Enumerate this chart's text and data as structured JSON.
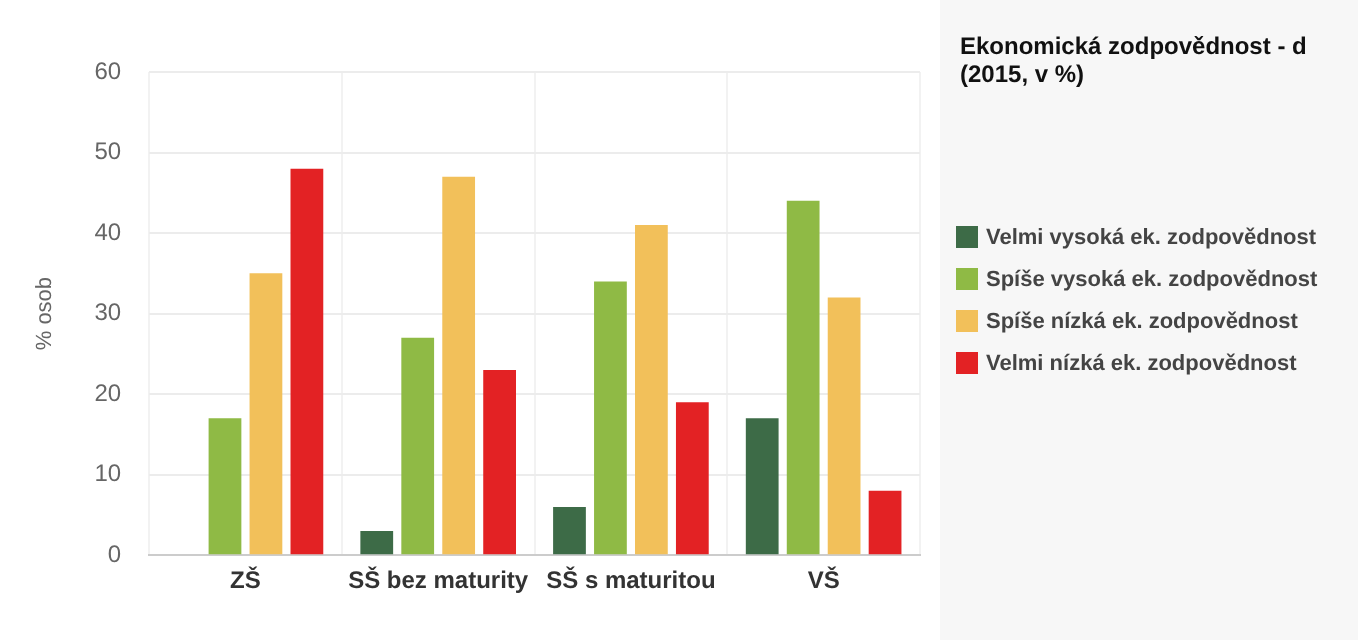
{
  "chart_data": {
    "type": "bar",
    "title": "Ekonomická zodpovědnost - d (2015, v %)",
    "ylabel": "% osob",
    "categories": [
      "ZŠ",
      "SŠ bez maturity",
      "SŠ s maturitou",
      "VŠ"
    ],
    "series": [
      {
        "name": "Velmi vysoká ek. zodpovědnost",
        "color": "#3d6b47",
        "values": [
          null,
          3,
          6,
          17
        ]
      },
      {
        "name": "Spíše vysoká ek. zodpovědnost",
        "color": "#8fba45",
        "values": [
          17,
          27,
          34,
          44
        ]
      },
      {
        "name": "Spíše nízká ek. zodpovědnost",
        "color": "#f2c05a",
        "values": [
          35,
          47,
          41,
          32
        ]
      },
      {
        "name": "Velmi nízká ek. zodpovědnost",
        "color": "#e32224",
        "values": [
          48,
          23,
          19,
          8
        ]
      }
    ],
    "ylim": [
      0,
      60
    ],
    "yticks": [
      0,
      10,
      20,
      30,
      40,
      50,
      60
    ],
    "grid": true,
    "legend": "right"
  }
}
